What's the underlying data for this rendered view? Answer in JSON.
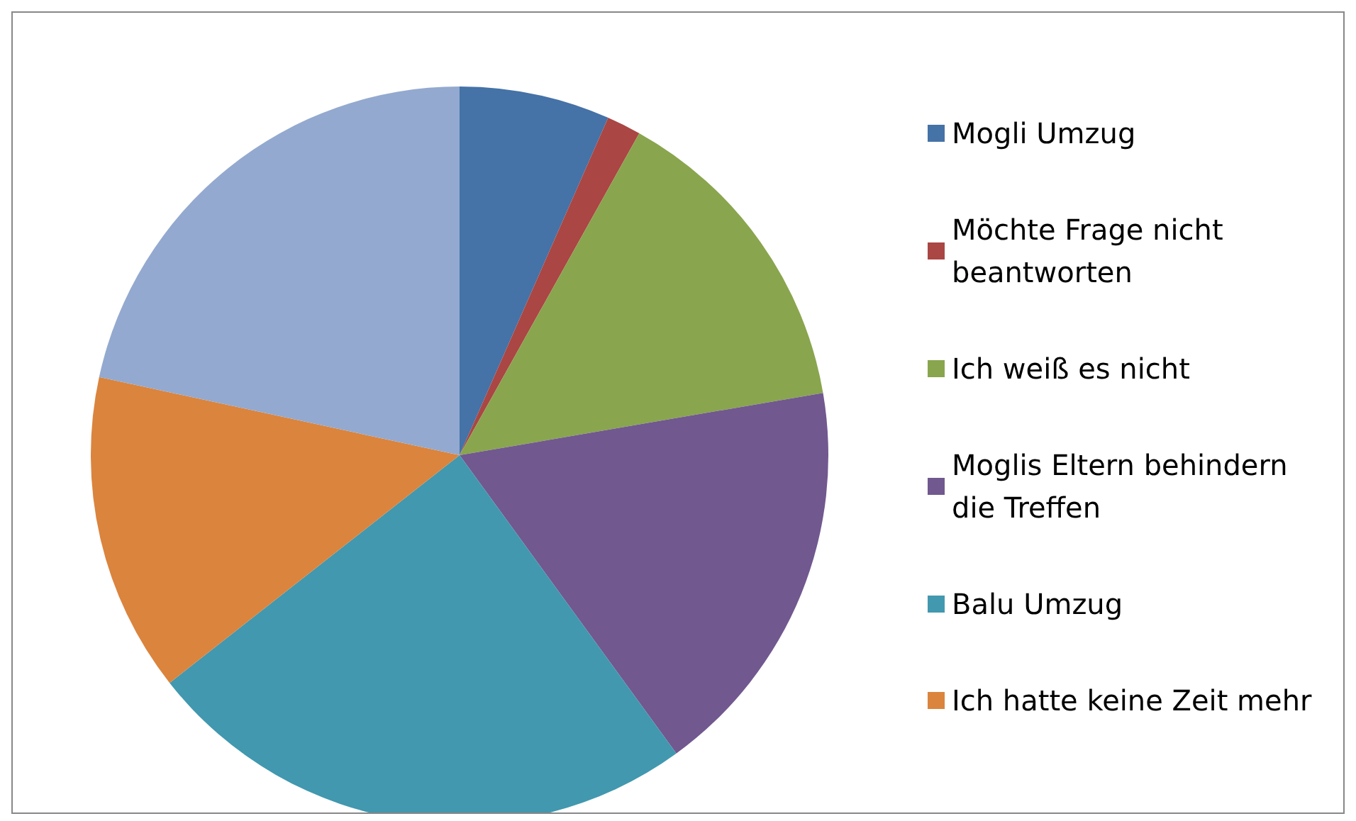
{
  "chart_data": {
    "type": "pie",
    "categories": [
      "Mogli Umzug",
      "Möchte Frage nicht beantworten",
      "Ich weiß es nicht",
      "Moglis Eltern behindern die Treffen",
      "Balu Umzug",
      "Ich hatte keine Zeit mehr",
      null
    ],
    "values": [
      6.6,
      1.5,
      14.2,
      17.7,
      24.4,
      14.0,
      21.6
    ],
    "colors": [
      "#4572a7",
      "#aa4643",
      "#89a54e",
      "#71588f",
      "#4198af",
      "#db843d",
      "#93a9cf"
    ],
    "legend": "right"
  }
}
